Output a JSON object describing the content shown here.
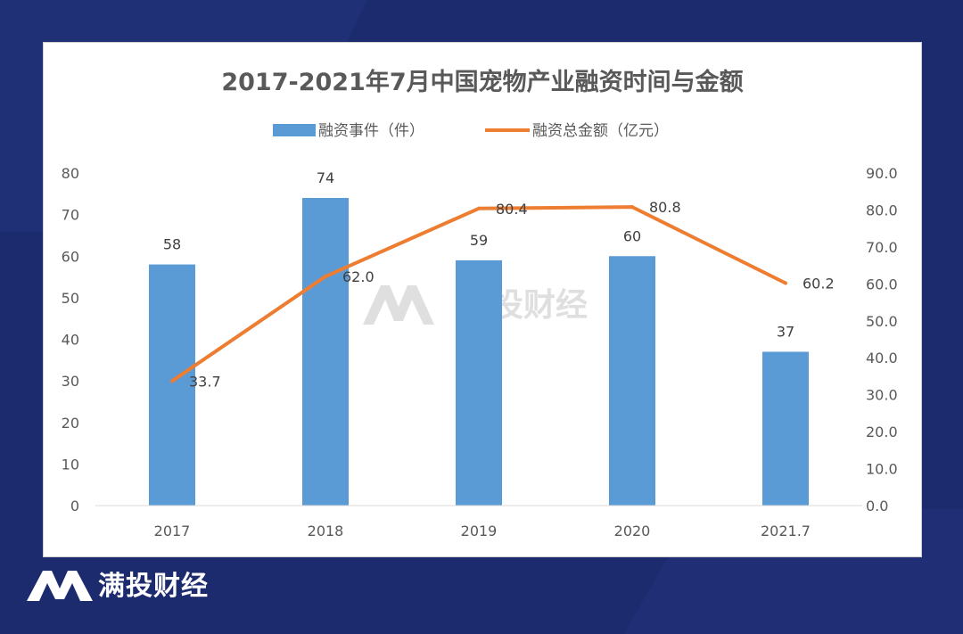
{
  "brand": {
    "name": "满投财经"
  },
  "colors": {
    "bar": "#5b9bd5",
    "line": "#ed7d31",
    "background": "#1c2a6e"
  },
  "chart_data": {
    "type": "bar",
    "title": "2017-2021年7月中国宠物产业融资时间与金额",
    "categories": [
      "2017",
      "2018",
      "2019",
      "2020",
      "2021.7"
    ],
    "series": [
      {
        "name": "融资事件（件）",
        "type": "bar",
        "axis": "left",
        "values": [
          58,
          74,
          59,
          60,
          37
        ],
        "labels": [
          "58",
          "74",
          "59",
          "60",
          "37"
        ]
      },
      {
        "name": "融资总金额（亿元）",
        "type": "line",
        "axis": "right",
        "values": [
          33.7,
          62.0,
          80.4,
          80.8,
          60.2
        ],
        "labels": [
          "33.7",
          "62.0",
          "80.4",
          "80.8",
          "60.2"
        ]
      }
    ],
    "left_axis": {
      "ylim": [
        0,
        80
      ],
      "ticks": [
        "0",
        "10",
        "20",
        "30",
        "40",
        "50",
        "60",
        "70",
        "80"
      ]
    },
    "right_axis": {
      "ylim": [
        0,
        90
      ],
      "ticks": [
        "0.0",
        "10.0",
        "20.0",
        "30.0",
        "40.0",
        "50.0",
        "60.0",
        "70.0",
        "80.0",
        "90.0"
      ]
    },
    "legend": "top",
    "grid": false
  }
}
